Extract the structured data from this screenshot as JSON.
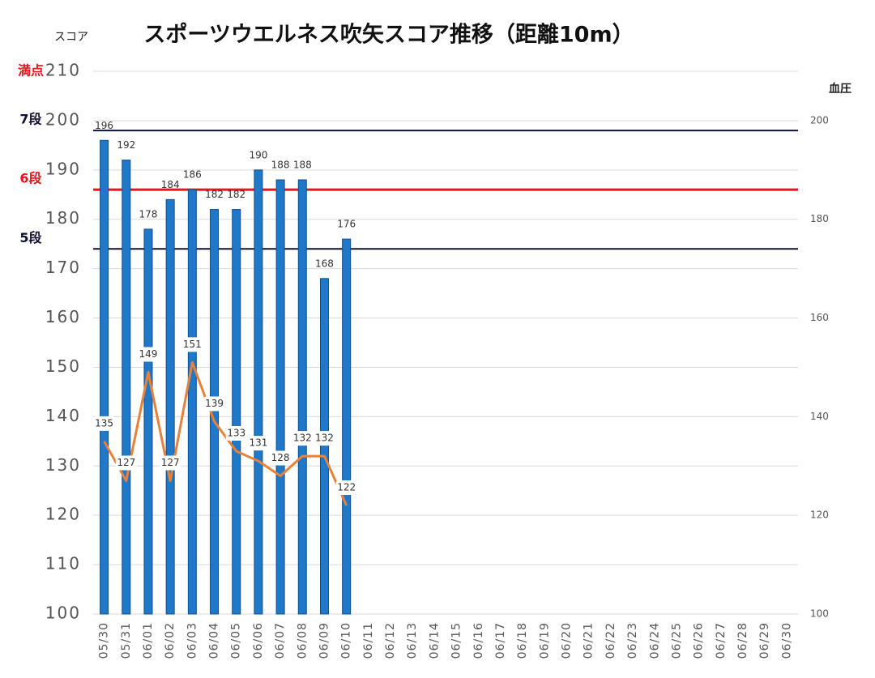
{
  "chart_data": {
    "type": "bar_line",
    "title": "スポーツウエルネス吹矢スコア推移（距離10m）",
    "y_label": "スコア",
    "y2_label": "血圧",
    "categories": [
      "05/30",
      "05/31",
      "06/01",
      "06/02",
      "06/03",
      "06/04",
      "06/05",
      "06/06",
      "06/07",
      "06/08",
      "06/09",
      "06/10",
      "06/11",
      "06/12",
      "06/13",
      "06/14",
      "06/15",
      "06/16",
      "06/17",
      "06/18",
      "06/19",
      "06/20",
      "06/21",
      "06/22",
      "06/23",
      "06/24",
      "06/25",
      "06/26",
      "06/27",
      "06/28",
      "06/29",
      "06/30"
    ],
    "series": [
      {
        "name": "スコア",
        "type": "bar",
        "color": "#1f78c8",
        "values": [
          196,
          192,
          178,
          184,
          186,
          182,
          182,
          190,
          188,
          188,
          168,
          176,
          null,
          null,
          null,
          null,
          null,
          null,
          null,
          null,
          null,
          null,
          null,
          null,
          null,
          null,
          null,
          null,
          null,
          null,
          null,
          null
        ]
      },
      {
        "name": "血圧",
        "type": "line",
        "axis": "y2",
        "color": "#e8823a",
        "values": [
          135,
          127,
          149,
          127,
          151,
          139,
          133,
          131,
          128,
          132,
          132,
          122,
          null,
          null,
          null,
          null,
          null,
          null,
          null,
          null,
          null,
          null,
          null,
          null,
          null,
          null,
          null,
          null,
          null,
          null,
          null,
          null
        ]
      }
    ],
    "ylim": [
      100,
      210
    ],
    "yticks": [
      100,
      110,
      120,
      130,
      140,
      150,
      160,
      170,
      180,
      190,
      200,
      210
    ],
    "y2lim": [
      100,
      210
    ],
    "y2ticks": [
      100,
      120,
      140,
      160,
      180,
      200
    ],
    "grid": true,
    "reference_lines": [
      {
        "label": "7段",
        "value": 198,
        "color": "#111133",
        "line": true
      },
      {
        "label": "6段",
        "value": 186,
        "color": "#e8141e",
        "line": true
      },
      {
        "label": "5段",
        "value": 174,
        "color": "#111133",
        "line": true
      },
      {
        "label": "満点",
        "value": 210,
        "color": "#e8141e",
        "line": false
      }
    ]
  }
}
